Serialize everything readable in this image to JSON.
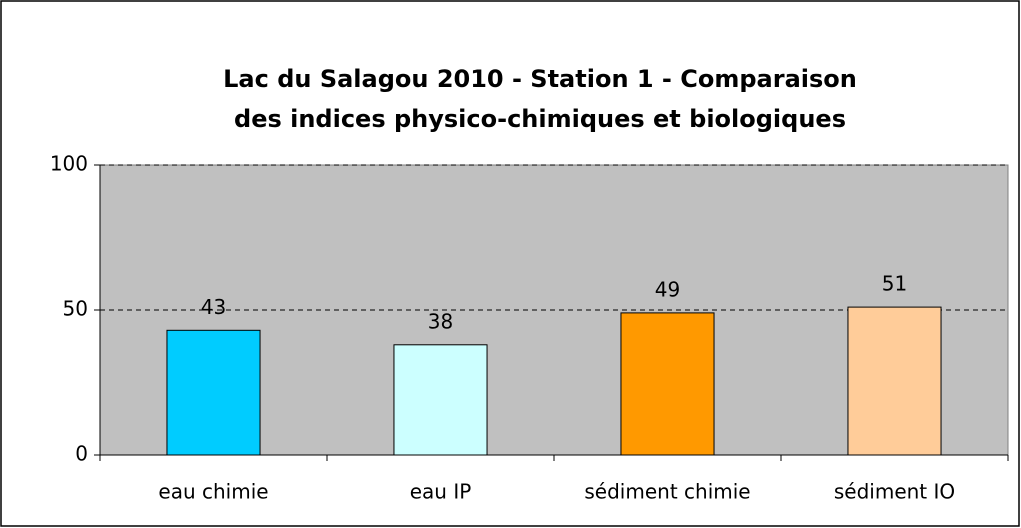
{
  "chart_data": {
    "type": "bar",
    "title": [
      "Lac du Salagou 2010 - Station 1 - Comparaison",
      "des indices physico-chimiques et biologiques"
    ],
    "categories": [
      "eau chimie",
      "eau IP",
      "sédiment chimie",
      "sédiment IO"
    ],
    "values": [
      43,
      38,
      49,
      51
    ],
    "colors": [
      "#00ccff",
      "#ccffff",
      "#ff9900",
      "#ffcc99"
    ],
    "ylim": [
      0,
      100
    ],
    "yticks": [
      0,
      50,
      100
    ],
    "grid": true,
    "grid_style": "dashed",
    "plot_background": "#c0c0c0"
  }
}
